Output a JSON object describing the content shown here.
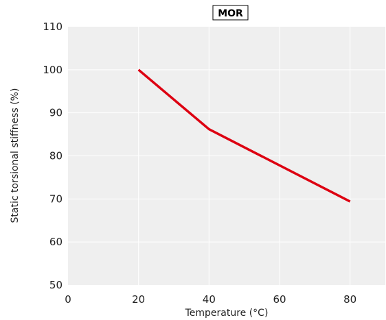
{
  "chart_data": {
    "type": "line",
    "title": "",
    "xlabel": "Temperature (°C)",
    "ylabel": "Static torsional stiffness (%)",
    "xlim": [
      0,
      90
    ],
    "ylim": [
      50,
      110
    ],
    "xticks": [
      0,
      20,
      40,
      60,
      80
    ],
    "yticks": [
      50,
      60,
      70,
      80,
      90,
      100,
      110
    ],
    "grid": true,
    "legend_position": "top-right",
    "series": [
      {
        "name": "MOR",
        "color": "#dd0011",
        "x": [
          20,
          40,
          80
        ],
        "y": [
          100,
          86.2,
          69.4
        ]
      }
    ]
  }
}
